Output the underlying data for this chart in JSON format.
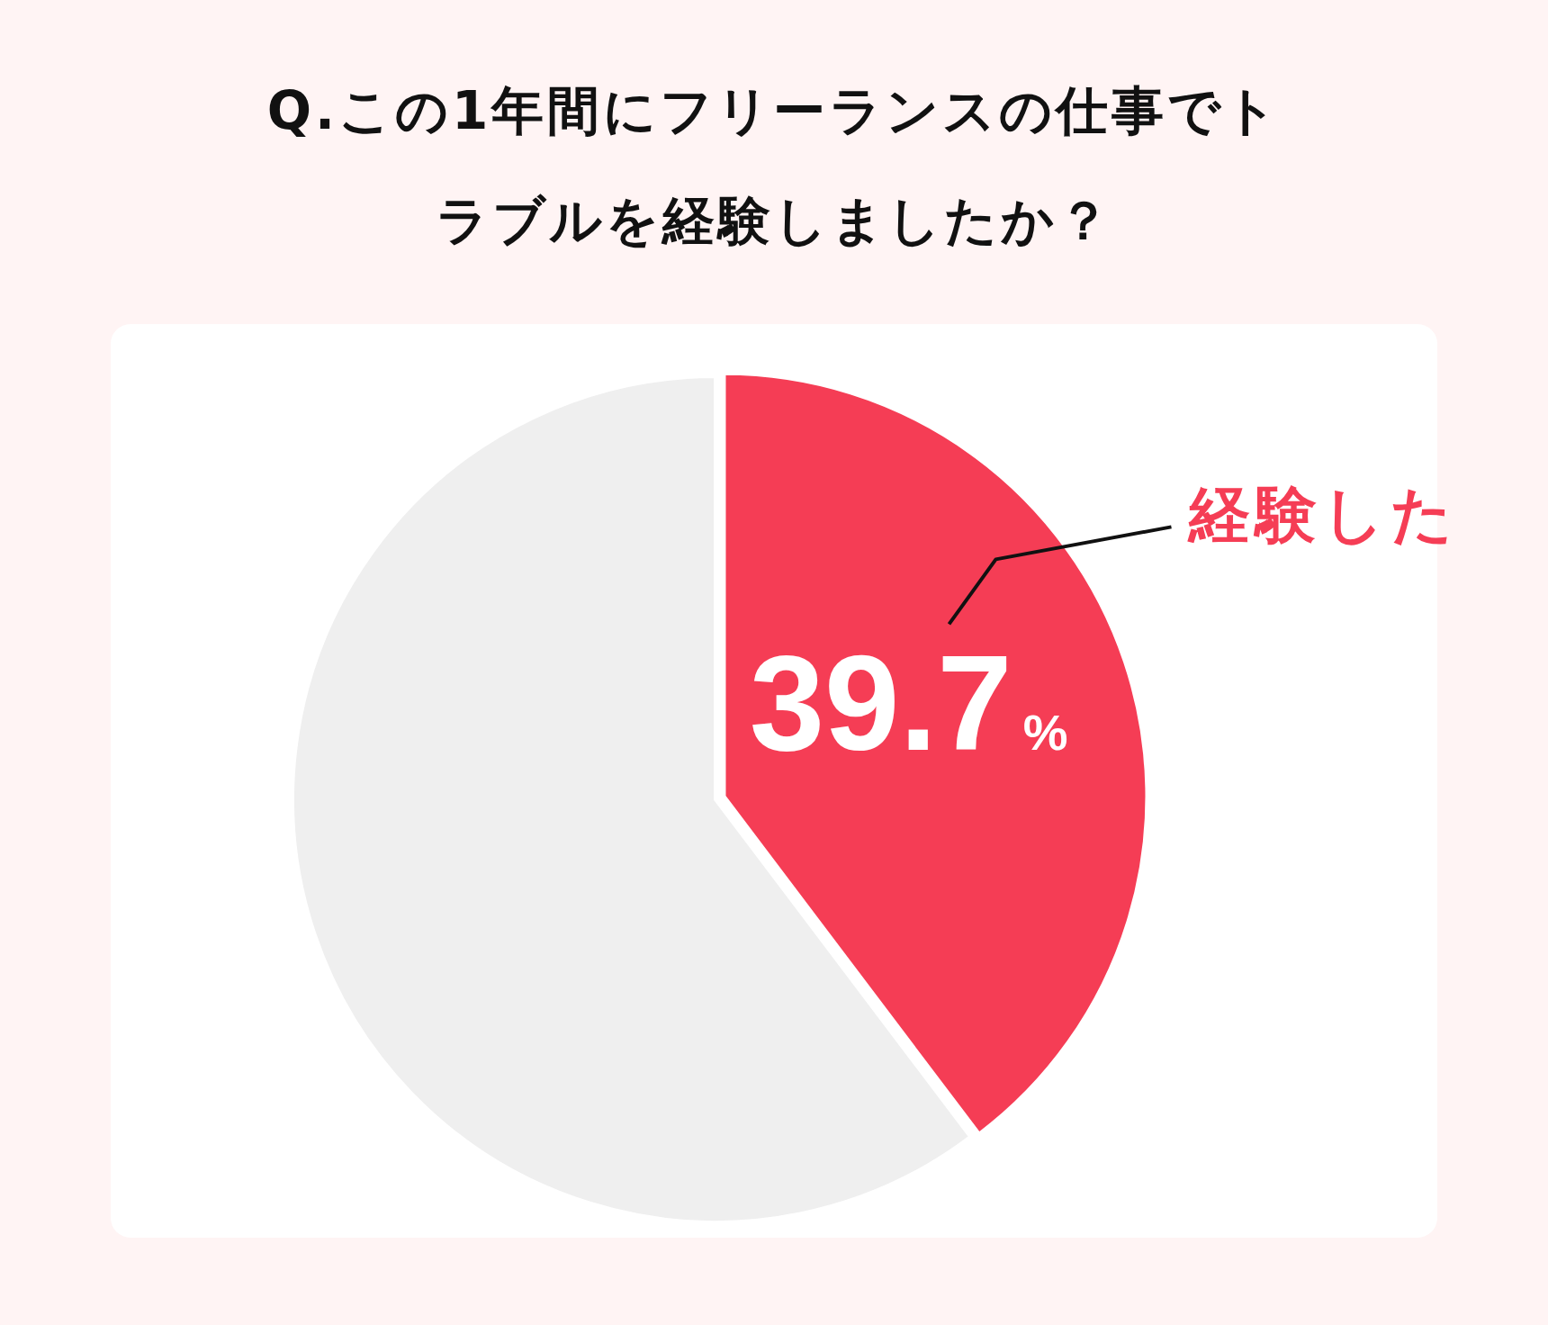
{
  "chart_data": {
    "type": "pie",
    "title": "Q.この1年間にフリーランスの仕事でトラブルを経験しましたか？",
    "categories": [
      "経験した",
      null
    ],
    "values": [
      39.7,
      60.3
    ],
    "colors": [
      "#f53d55",
      "#efefef"
    ],
    "value_labels": [
      "39.7%",
      null
    ]
  }
}
